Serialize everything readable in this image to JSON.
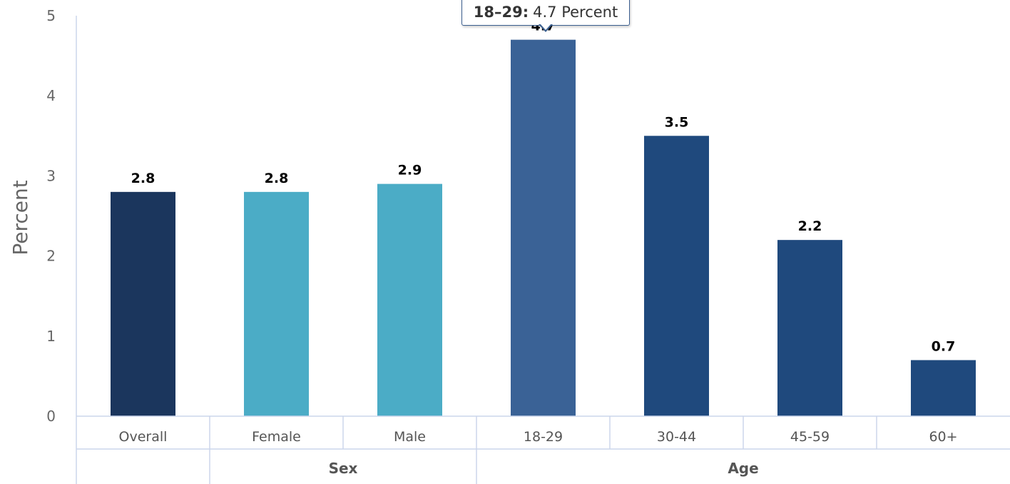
{
  "chart_data": {
    "type": "bar",
    "categories": [
      "Overall",
      "Female",
      "Male",
      "18-29",
      "30-44",
      "45-59",
      "60+"
    ],
    "values": [
      2.8,
      2.8,
      2.9,
      4.7,
      3.5,
      2.2,
      0.7
    ],
    "value_labels": [
      "2.8",
      "2.8",
      "2.9",
      "4.7",
      "3.5",
      "2.2",
      "0.7"
    ],
    "bar_colors": [
      "#1b365d",
      "#4bacc6",
      "#4bacc6",
      "#3a6296",
      "#1f497d",
      "#1f497d",
      "#1f497d"
    ],
    "groups": [
      {
        "label": "",
        "categories": [
          "Overall"
        ]
      },
      {
        "label": "Sex",
        "categories": [
          "Female",
          "Male"
        ]
      },
      {
        "label": "Age",
        "categories": [
          "18-29",
          "30-44",
          "45-59",
          "60+"
        ]
      }
    ],
    "ylabel": "Percent",
    "xlabel": "",
    "ylim": [
      0,
      5
    ],
    "yticks": [
      "0",
      "1",
      "2",
      "3",
      "4",
      "5"
    ],
    "grid": false,
    "tooltip": {
      "category": "18–29:",
      "text": "4.7 Percent"
    }
  }
}
